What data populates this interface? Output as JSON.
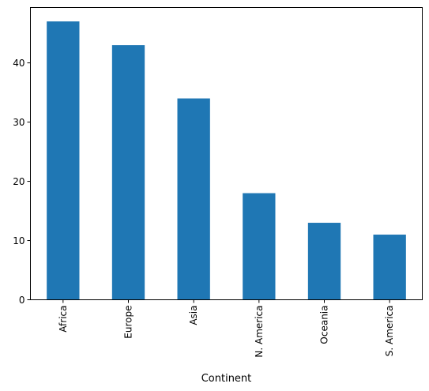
{
  "chart_data": {
    "type": "bar",
    "title": "",
    "xlabel": "Continent",
    "ylabel": "",
    "categories": [
      "Africa",
      "Europe",
      "Asia",
      "N. America",
      "Oceania",
      "S. America"
    ],
    "values": [
      47,
      43,
      34,
      18,
      13,
      11
    ],
    "ylim": [
      0,
      49.35
    ],
    "yticks": [
      0,
      10,
      20,
      30,
      40
    ],
    "ytick_labels": [
      "0",
      "10",
      "20",
      "30",
      "40"
    ],
    "grid": false,
    "bar_color": "#1f77b4"
  }
}
